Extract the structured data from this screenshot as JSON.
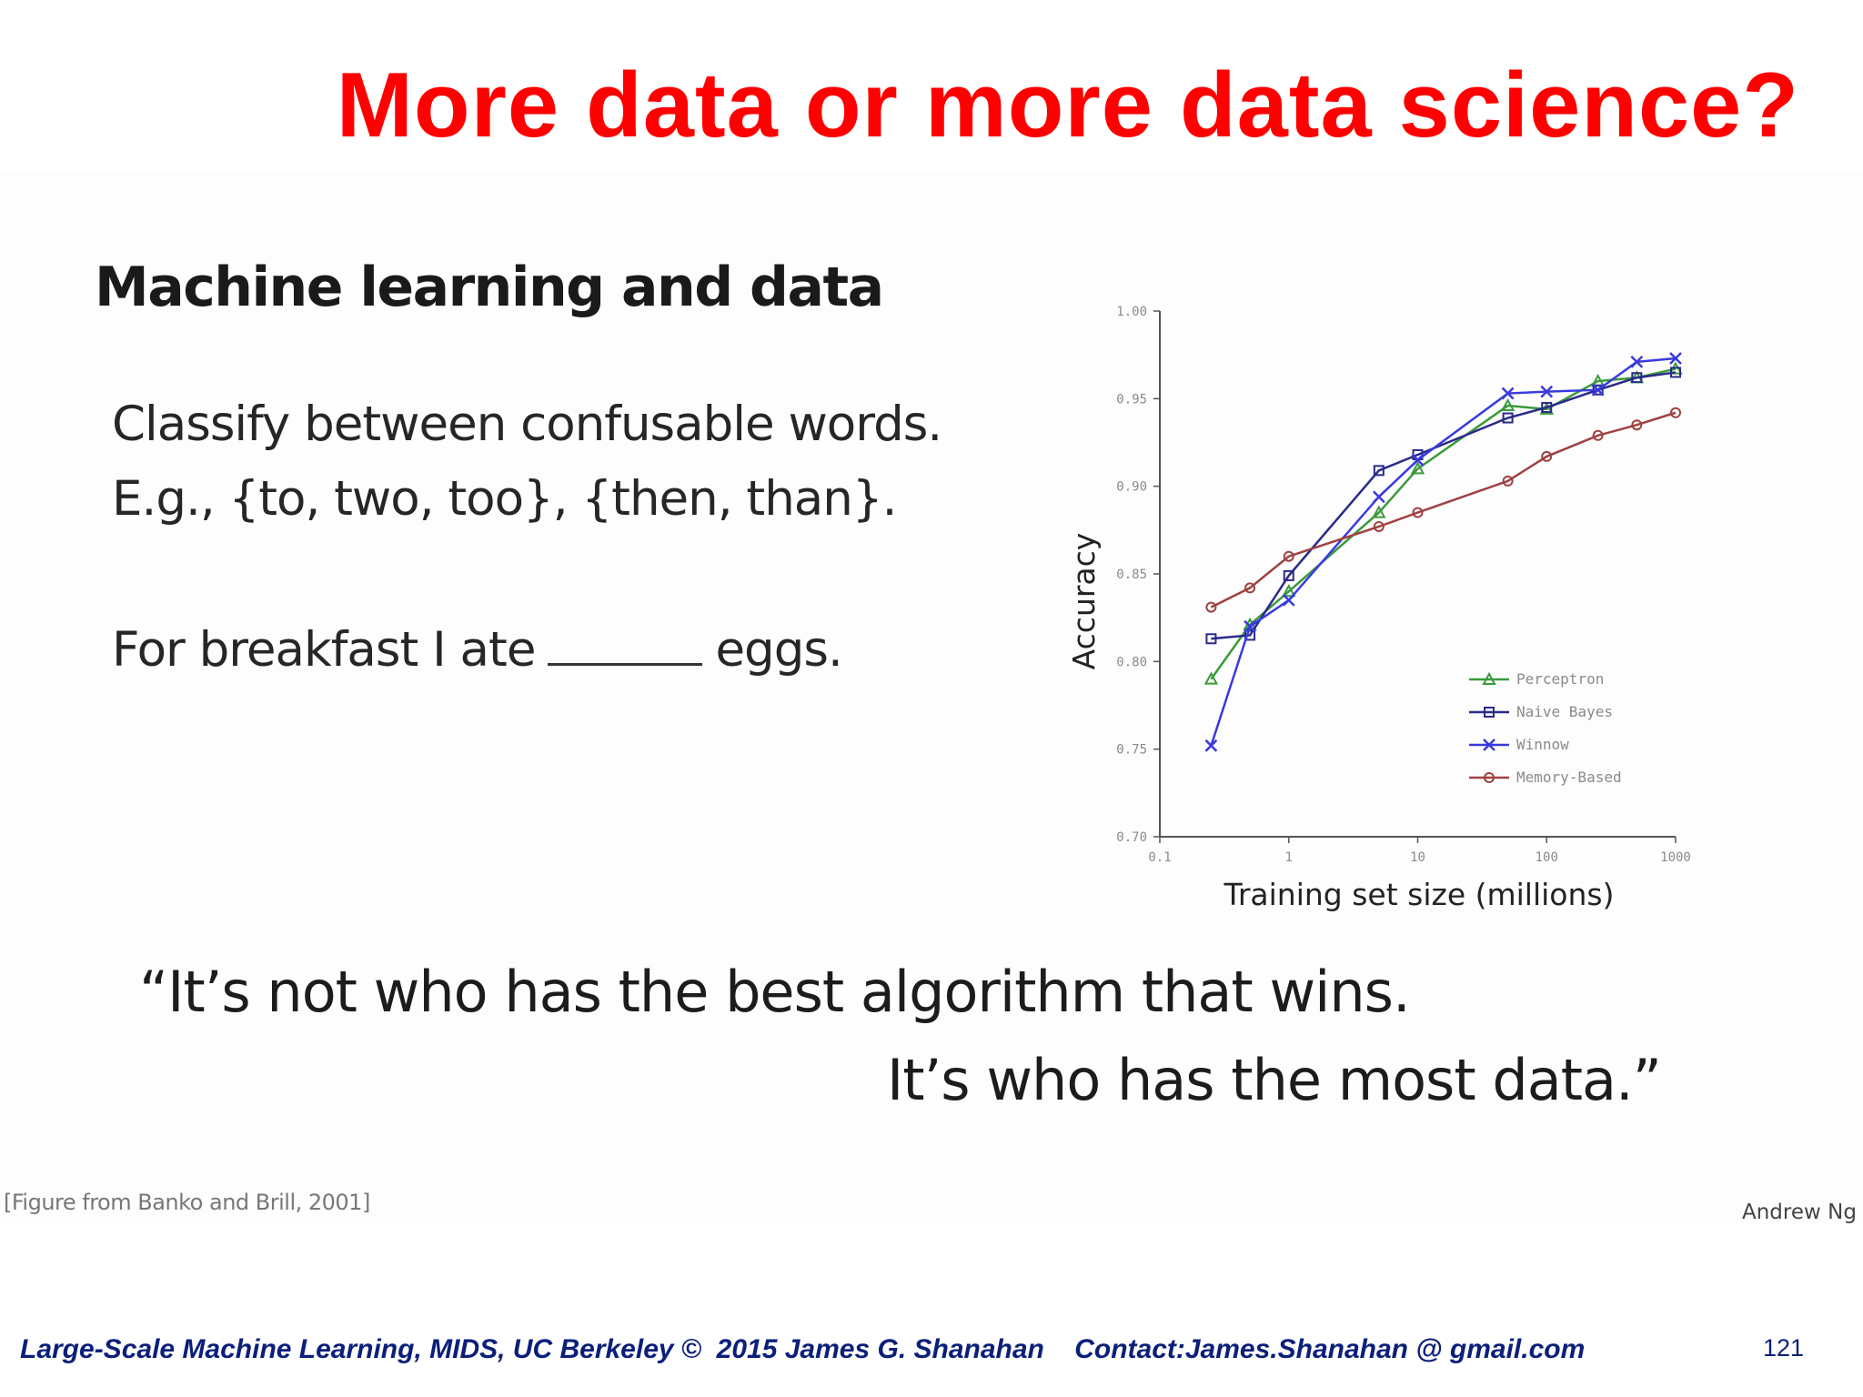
{
  "slide": {
    "title": "More data or more data science?",
    "heading": "Machine learning and data",
    "line1": "Classify between confusable words.",
    "line2": "E.g., {to, two, too}, {then, than}.",
    "example_prefix": "For breakfast I ate",
    "example_suffix": "eggs.",
    "quote_line1": "“It’s not who has the best algorithm that wins.",
    "quote_line2": "It’s who has the most data.”",
    "citation": "[Figure from Banko and Brill, 2001]",
    "attribution": "Andrew Ng"
  },
  "footer": {
    "text": "Large-Scale Machine Learning, MIDS, UC Berkeley ©  2015 James G. Shanahan    Contact:James.Shanahan @ gmail.com",
    "page_number": "121"
  },
  "chart_data": {
    "type": "line",
    "xlabel": "Training set size (millions)",
    "ylabel": "Accuracy",
    "xscale": "log",
    "xlim": [
      0.1,
      1000
    ],
    "ylim": [
      0.7,
      1.0
    ],
    "x_ticks": [
      "0.1",
      "1",
      "10",
      "100",
      "1000"
    ],
    "y_ticks": [
      "0.70",
      "0.75",
      "0.80",
      "0.85",
      "0.90",
      "0.95",
      "1.00"
    ],
    "grid": false,
    "legend_position": "bottom-right",
    "x": [
      0.25,
      0.5,
      1,
      5,
      10,
      50,
      100,
      250,
      500,
      1000
    ],
    "series": [
      {
        "name": "Perceptron",
        "color": "#3a9a3a",
        "marker": "triangle",
        "values": [
          0.79,
          0.821,
          0.84,
          0.885,
          0.91,
          0.946,
          0.944,
          0.96,
          0.962,
          0.967
        ]
      },
      {
        "name": "Naive Bayes",
        "color": "#2a2a8a",
        "marker": "square",
        "values": [
          0.813,
          0.815,
          0.849,
          0.909,
          0.918,
          0.939,
          0.945,
          0.955,
          0.962,
          0.965
        ]
      },
      {
        "name": "Winnow",
        "color": "#3a3ae0",
        "marker": "x",
        "values": [
          0.752,
          0.82,
          0.835,
          0.894,
          0.915,
          0.953,
          0.954,
          0.955,
          0.971,
          0.973
        ]
      },
      {
        "name": "Memory-Based",
        "color": "#a04040",
        "marker": "circle",
        "values": [
          0.831,
          0.842,
          0.86,
          0.877,
          0.885,
          0.903,
          0.917,
          0.929,
          0.935,
          0.942
        ]
      }
    ]
  }
}
